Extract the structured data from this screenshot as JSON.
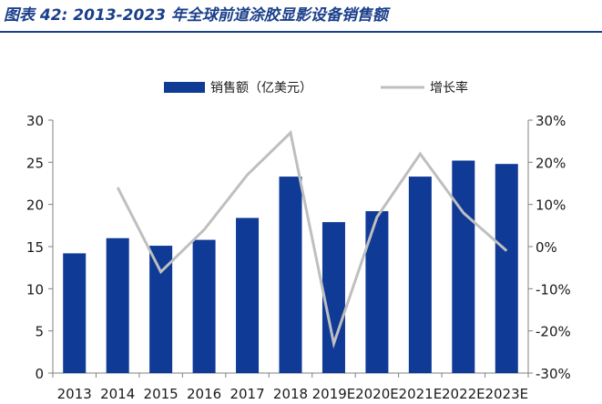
{
  "figure_title": "图表 42:  2013-2023 年全球前道涂胶显影设备销售额",
  "colors": {
    "bar": "#0f3a96",
    "line": "#bfbfbf",
    "title": "#1a3f8a",
    "axis": "#808080",
    "text": "#1a1a1a"
  },
  "chart_data": {
    "type": "bar",
    "title": "",
    "categories": [
      "2013",
      "2014",
      "2015",
      "2016",
      "2017",
      "2018",
      "2019E",
      "2020E",
      "2021E",
      "2022E",
      "2023E"
    ],
    "series": [
      {
        "name": "销售额（亿美元）",
        "type": "bar",
        "axis": "left",
        "values": [
          14.2,
          16.0,
          15.1,
          15.8,
          18.4,
          23.3,
          17.9,
          19.2,
          23.3,
          25.2,
          24.8
        ]
      },
      {
        "name": "增长率",
        "type": "line",
        "axis": "right",
        "values": [
          null,
          14,
          -6,
          4,
          17,
          27,
          -23,
          7,
          22,
          8,
          -1
        ]
      }
    ],
    "ylim_left": [
      0,
      30
    ],
    "yticks_left": [
      0,
      5,
      10,
      15,
      20,
      25,
      30
    ],
    "ylim_right": [
      -30,
      30
    ],
    "yticks_right": [
      "-30%",
      "-20%",
      "-10%",
      "0%",
      "10%",
      "20%",
      "30%"
    ],
    "legend_position": "top-center",
    "grid": false
  }
}
